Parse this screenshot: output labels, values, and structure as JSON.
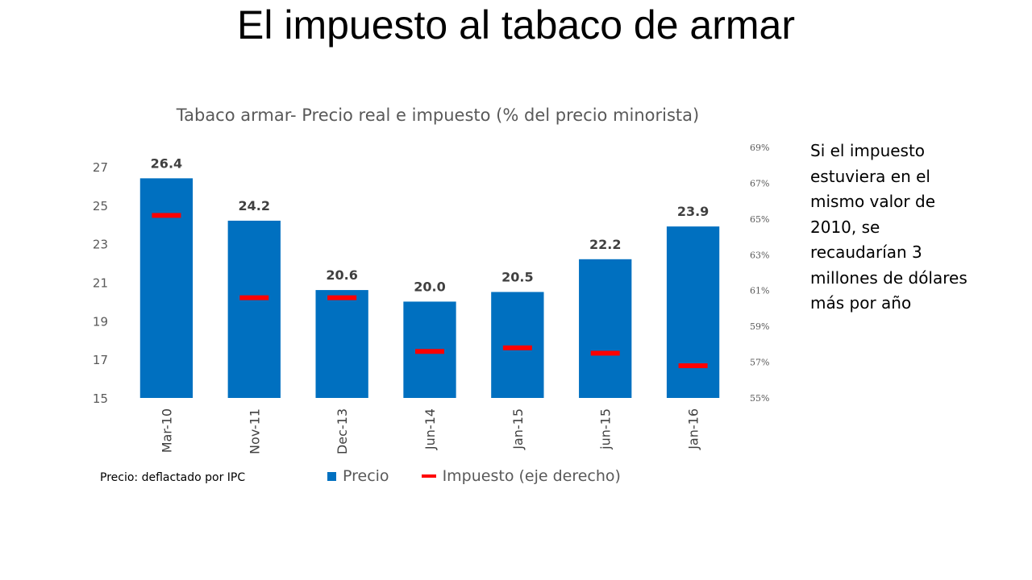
{
  "slide": {
    "title": "El impuesto al tabaco de armar",
    "note_lines": [
      "Si el impuesto",
      "estuviera en el",
      "mismo valor de",
      "2010, se",
      "recaudarían 3",
      "millones de dólares",
      "más por año"
    ],
    "footnote": "Precio: deflactado por IPC"
  },
  "chart_data": {
    "type": "bar",
    "title": "Tabaco  armar- Precio real e impuesto (% del precio minorista)",
    "categories": [
      "Mar-10",
      "Nov-11",
      "Dec-13",
      "Jun-14",
      "Jan-15",
      "jun-15",
      "Jan-16"
    ],
    "series": [
      {
        "name": "Precio",
        "type": "bar",
        "axis": "left",
        "color": "#0070C0",
        "values": [
          26.4,
          24.2,
          20.6,
          20.0,
          20.5,
          22.2,
          23.9
        ],
        "data_labels": [
          "26.4",
          "24.2",
          "20.6",
          "20.0",
          "20.5",
          "22.2",
          "23.9"
        ]
      },
      {
        "name": "Impuesto (eje derecho)",
        "type": "marker",
        "axis": "right",
        "color": "#FF0000",
        "values": [
          0.652,
          0.606,
          0.606,
          0.576,
          0.578,
          0.575,
          0.568
        ]
      }
    ],
    "ylim": [
      15,
      27
    ],
    "yticks": [
      "15",
      "17",
      "19",
      "21",
      "23",
      "25",
      "27"
    ],
    "y2lim": [
      0.55,
      0.69
    ],
    "y2ticks": [
      "55%",
      "57%",
      "59%",
      "61%",
      "63%",
      "65%",
      "67%",
      "69%"
    ],
    "grid": false,
    "legend_position": "bottom"
  }
}
